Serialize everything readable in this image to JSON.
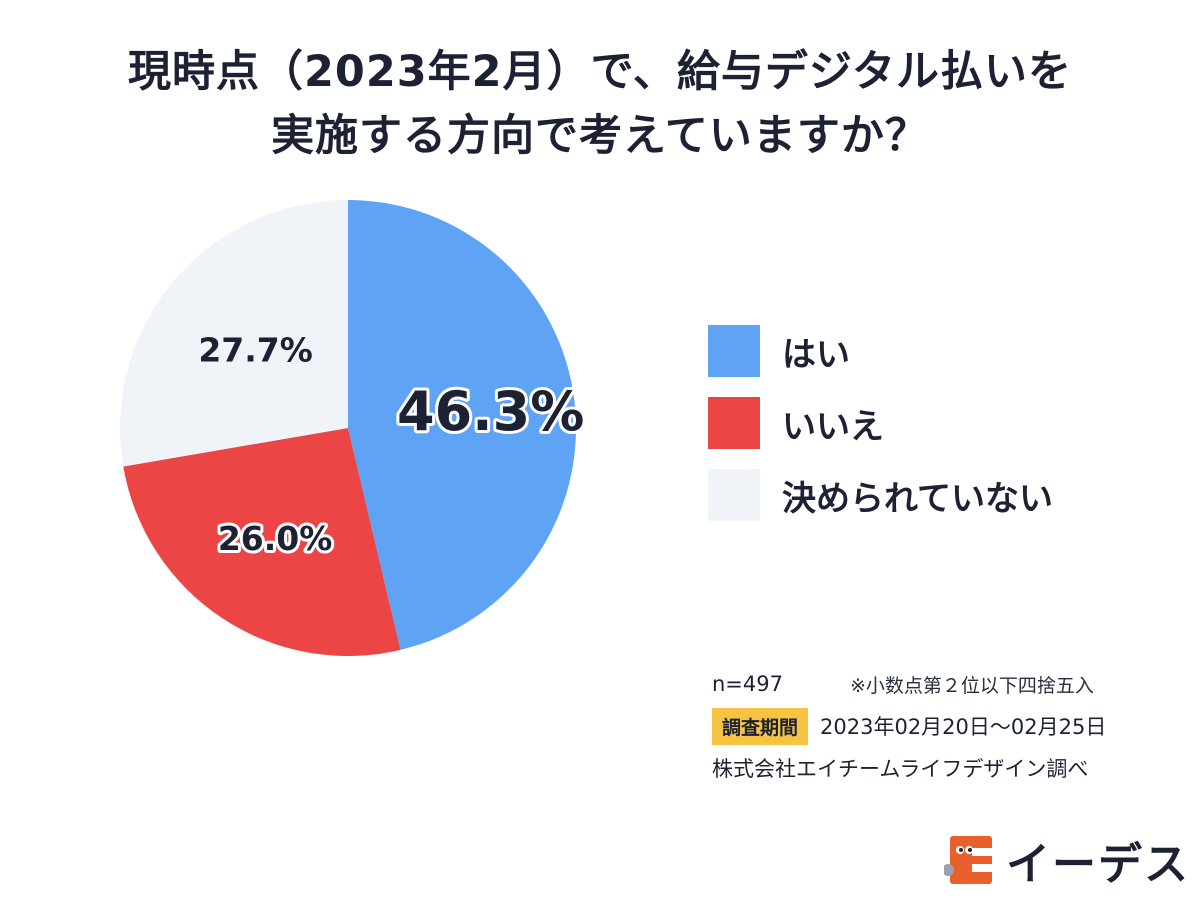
{
  "title": {
    "line1": "現時点（2023年2月）で、給与デジタル払いを",
    "line2": "実施する方向で考えていますか？"
  },
  "chart_data": {
    "type": "pie",
    "title": "現時点（2023年2月）で、給与デジタル払いを実施する方向で考えていますか？",
    "categories": [
      "はい",
      "いいえ",
      "決められていない"
    ],
    "values": [
      46.3,
      26.0,
      27.7
    ],
    "labels": [
      "46.3%",
      "26.0%",
      "27.7%"
    ],
    "colors": [
      "#5fa3f5",
      "#ec4545",
      "#f0f3f8"
    ],
    "start": "12 o'clock",
    "direction": "clockwise",
    "legend": "right"
  },
  "legend": [
    {
      "label": "はい",
      "color": "#5fa3f5"
    },
    {
      "label": "いいえ",
      "color": "#ec4545"
    },
    {
      "label": "決められていない",
      "color": "#f0f3f8"
    }
  ],
  "notes": {
    "n": "n=497",
    "rounding": "※小数点第２位以下四捨五入",
    "period_label": "調査期間",
    "period_value": "2023年02月20日～02月25日",
    "credit": "株式会社エイチームライフデザイン調べ"
  },
  "logo": {
    "text": "イーデス",
    "icon": "ide-su-brand-icon",
    "color": "#e8612c"
  }
}
